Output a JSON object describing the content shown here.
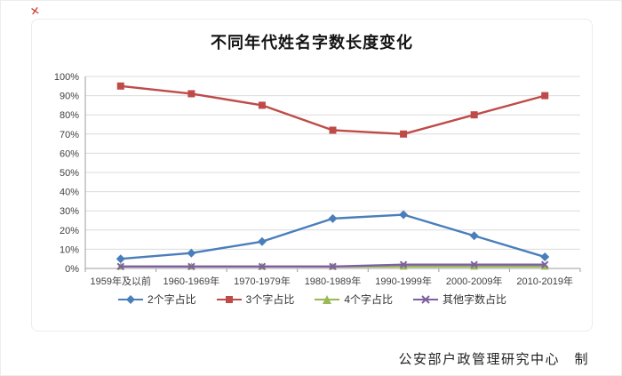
{
  "decorations": {
    "top_left_mark": "✕"
  },
  "chart": {
    "attribution": "公安部户政管理研究中心　制"
  },
  "chart_data": {
    "type": "line",
    "title": "不同年代姓名字数长度变化",
    "categories": [
      "1959年及以前",
      "1960-1969年",
      "1970-1979年",
      "1980-1989年",
      "1990-1999年",
      "2000-2009年",
      "2010-2019年"
    ],
    "series": [
      {
        "name": "2个字占比",
        "marker": "diamond",
        "color": "#4a7ebb",
        "values": [
          5,
          8,
          14,
          26,
          28,
          17,
          6
        ]
      },
      {
        "name": "3个字占比",
        "marker": "square",
        "color": "#be4b48",
        "values": [
          95,
          91,
          85,
          72,
          70,
          80,
          90
        ]
      },
      {
        "name": "4个字占比",
        "marker": "triangle",
        "color": "#98b954",
        "values": [
          1,
          1,
          1,
          1,
          1,
          1,
          1
        ]
      },
      {
        "name": "其他字数占比",
        "marker": "x",
        "color": "#7d60a0",
        "values": [
          1,
          1,
          1,
          1,
          2,
          2,
          2
        ]
      }
    ],
    "ylim": [
      0,
      100
    ],
    "ytick_step": 10,
    "ytick_suffix": "%",
    "grid": true,
    "legend_position": "bottom",
    "xlabel": "",
    "ylabel": ""
  }
}
